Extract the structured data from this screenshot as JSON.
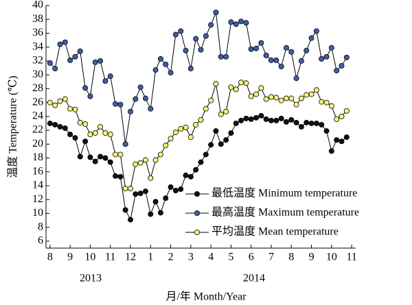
{
  "chart_data": {
    "type": "line",
    "ylabel": "温度 Temperature (℃)",
    "xlabel": "月/年 Month/Year",
    "annotations": [
      "2013",
      "2014"
    ],
    "x": [
      0,
      0.25,
      0.5,
      0.75,
      1,
      1.25,
      1.5,
      1.75,
      2,
      2.25,
      2.5,
      2.75,
      3,
      3.25,
      3.5,
      3.75,
      4,
      4.25,
      4.5,
      4.75,
      5,
      5.25,
      5.5,
      5.75,
      6,
      6.25,
      6.5,
      6.75,
      7,
      7.25,
      7.5,
      7.75,
      8,
      8.25,
      8.5,
      8.75,
      9,
      9.25,
      9.5,
      9.75,
      10,
      10.25,
      10.5,
      10.75,
      11,
      11.25,
      11.5,
      11.75,
      12,
      12.25,
      12.5,
      12.75,
      13,
      13.25,
      13.5,
      13.75,
      14,
      14.25,
      14.5,
      14.75
    ],
    "series": [
      {
        "name": "最低温度 Minimum temperature",
        "color": "#111111",
        "values": [
          23.0,
          22.8,
          22.5,
          22.3,
          21.4,
          20.9,
          18.2,
          20.4,
          18.1,
          17.5,
          18.2,
          18.0,
          17.4,
          15.4,
          15.3,
          10.5,
          9.1,
          12.8,
          12.9,
          13.2,
          9.9,
          11.7,
          10.1,
          12.2,
          13.8,
          13.3,
          13.5,
          15.5,
          15.3,
          16.3,
          17.4,
          18.5,
          19.9,
          21.9,
          20.0,
          20.6,
          21.6,
          23.0,
          23.4,
          23.7,
          23.6,
          23.8,
          24.1,
          23.6,
          23.4,
          23.4,
          23.7,
          23.2,
          23.5,
          23.1,
          22.5,
          23.1,
          23.0,
          23.0,
          22.8,
          21.9,
          19.0,
          20.6,
          20.4,
          21.0
        ]
      },
      {
        "name": "最高温度 Maximum temperature",
        "color": "#3d5ea8",
        "values": [
          31.7,
          30.9,
          34.4,
          34.7,
          32.1,
          32.6,
          33.4,
          28.1,
          26.9,
          31.8,
          32.0,
          29.1,
          29.8,
          25.8,
          25.7,
          20.0,
          24.7,
          26.5,
          28.2,
          26.6,
          25.1,
          30.7,
          32.3,
          31.5,
          30.3,
          35.8,
          36.3,
          33.5,
          30.9,
          35.2,
          33.6,
          35.6,
          37.2,
          39.0,
          32.6,
          32.6,
          37.6,
          37.3,
          37.7,
          37.5,
          33.7,
          33.8,
          34.6,
          32.8,
          32.1,
          32.1,
          31.2,
          33.9,
          33.3,
          29.5,
          32.0,
          33.5,
          35.3,
          36.3,
          32.3,
          32.6,
          33.9,
          30.6,
          31.3,
          32.5
        ]
      },
      {
        "name": "平均温度 Mean temperature",
        "color": "#f2f27a",
        "values": [
          26.0,
          25.6,
          26.2,
          26.5,
          25.1,
          25.0,
          23.1,
          22.9,
          21.4,
          21.6,
          22.5,
          21.6,
          21.4,
          18.5,
          18.5,
          13.6,
          13.6,
          17.1,
          17.3,
          17.7,
          15.1,
          17.7,
          18.5,
          19.8,
          20.8,
          21.7,
          22.2,
          22.4,
          21.0,
          22.8,
          23.5,
          25.1,
          26.3,
          28.7,
          24.3,
          24.7,
          28.2,
          27.9,
          28.9,
          28.8,
          26.9,
          27.2,
          28.1,
          26.5,
          26.8,
          26.7,
          26.3,
          26.6,
          26.6,
          25.7,
          26.6,
          27.1,
          27.2,
          27.8,
          26.1,
          26.0,
          25.5,
          23.6,
          24.0,
          24.8
        ]
      }
    ],
    "line_color": "#000000",
    "xlim": [
      -0.2,
      15.2
    ],
    "xticks": [
      {
        "value": 0,
        "label": "8"
      },
      {
        "value": 1,
        "label": "9"
      },
      {
        "value": 2,
        "label": "10"
      },
      {
        "value": 3,
        "label": "11"
      },
      {
        "value": 4,
        "label": "12"
      },
      {
        "value": 5,
        "label": "1"
      },
      {
        "value": 6,
        "label": "2"
      },
      {
        "value": 7,
        "label": "3"
      },
      {
        "value": 8,
        "label": "4"
      },
      {
        "value": 9,
        "label": "5"
      },
      {
        "value": 10,
        "label": "6"
      },
      {
        "value": 11,
        "label": "7"
      },
      {
        "value": 12,
        "label": "8"
      },
      {
        "value": 13,
        "label": "9"
      },
      {
        "value": 14,
        "label": "10"
      },
      {
        "value": 15,
        "label": "11"
      }
    ],
    "ylim": [
      5,
      40
    ],
    "yticks": [
      6,
      8,
      10,
      12,
      14,
      16,
      18,
      20,
      22,
      24,
      26,
      28,
      30,
      32,
      34,
      36,
      38,
      40
    ],
    "legend": "lower right"
  }
}
